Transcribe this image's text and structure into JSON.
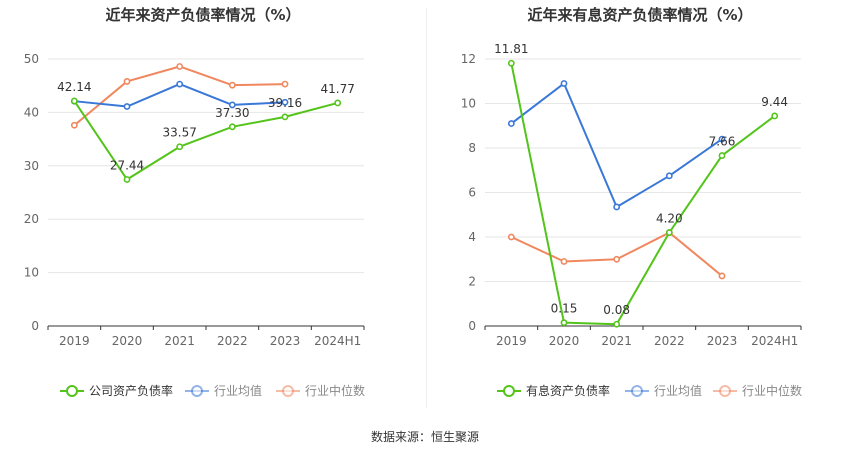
{
  "source_text": "数据来源：恒生聚源",
  "colors": {
    "primary": "#52c41a",
    "avg": "#3a78d8",
    "median": "#f0875e"
  },
  "chart_data": [
    {
      "type": "line",
      "title": "近年来资产负债率情况（%）",
      "categories": [
        "2019",
        "2020",
        "2021",
        "2022",
        "2023",
        "2024H1"
      ],
      "ylim": [
        0,
        50
      ],
      "yticks": [
        "0",
        "10",
        "20",
        "30",
        "40",
        "50"
      ],
      "grid": true,
      "legend_position": "bottom",
      "series": [
        {
          "name": "公司资产负债率",
          "values": [
            42.14,
            27.44,
            33.57,
            37.3,
            39.16,
            41.77
          ],
          "labels": [
            "42.14",
            "27.44",
            "33.57",
            "37.30",
            "39.16",
            "41.77"
          ]
        },
        {
          "name": "行业均值",
          "values": [
            42.1,
            41.1,
            45.3,
            41.4,
            41.9,
            null
          ]
        },
        {
          "name": "行业中位数",
          "values": [
            37.6,
            45.8,
            48.6,
            45.1,
            45.3,
            null
          ]
        }
      ]
    },
    {
      "type": "line",
      "title": "近年来有息资产负债率情况（%）",
      "categories": [
        "2019",
        "2020",
        "2021",
        "2022",
        "2023",
        "2024H1"
      ],
      "ylim": [
        0,
        12
      ],
      "yticks": [
        "0",
        "2",
        "4",
        "6",
        "8",
        "10",
        "12"
      ],
      "grid": true,
      "legend_position": "bottom",
      "series": [
        {
          "name": "有息资产负债率",
          "values": [
            11.81,
            0.15,
            0.08,
            4.2,
            7.66,
            9.44
          ],
          "labels": [
            "11.81",
            "0.15",
            "0.08",
            "4.20",
            "7.66",
            "9.44"
          ]
        },
        {
          "name": "行业均值",
          "values": [
            9.1,
            10.9,
            5.35,
            6.75,
            8.4,
            null
          ]
        },
        {
          "name": "行业中位数",
          "values": [
            4.0,
            2.9,
            3.0,
            4.2,
            2.25,
            null
          ]
        }
      ]
    }
  ]
}
